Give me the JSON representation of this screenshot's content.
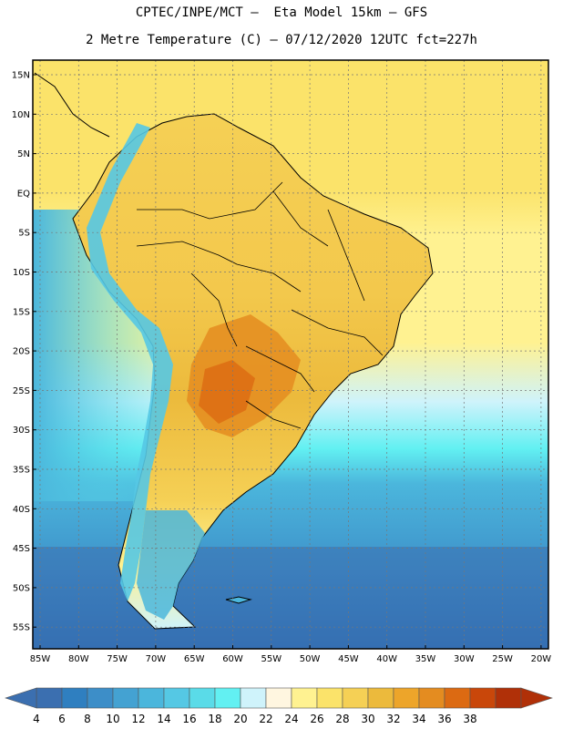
{
  "header": {
    "title_line1": "CPTEC/INPE/MCT –  Eta Model 15km – GFS",
    "title_line2": "2 Metre Temperature (C) – 07/12/2020 12UTC fct=227h"
  },
  "map": {
    "lat_ticks": [
      "15N",
      "10N",
      "5N",
      "EQ",
      "5S",
      "10S",
      "15S",
      "20S",
      "25S",
      "30S",
      "35S",
      "40S",
      "45S",
      "50S",
      "55S"
    ],
    "lon_ticks": [
      "85W",
      "80W",
      "75W",
      "70W",
      "65W",
      "60W",
      "55W",
      "50W",
      "45W",
      "40W",
      "35W",
      "30W",
      "25W",
      "20W"
    ]
  },
  "colorbar": {
    "labels": [
      "4",
      "6",
      "8",
      "10",
      "12",
      "14",
      "16",
      "18",
      "20",
      "22",
      "24",
      "26",
      "28",
      "30",
      "32",
      "34",
      "36",
      "38"
    ],
    "colors": [
      "#3b6fb0",
      "#2f7fc0",
      "#3d8ec8",
      "#44a2d2",
      "#4bb6dc",
      "#55c8e4",
      "#5adbe8",
      "#62f0f2",
      "#cff3fb",
      "#fff6e0",
      "#fff291",
      "#fbe36a",
      "#f5d055",
      "#ecba3c",
      "#eda52a",
      "#e48c20",
      "#dc6a12",
      "#c9470a",
      "#b03008"
    ],
    "end_left_color": "#3b6fb0",
    "end_right_color": "#b03008"
  }
}
